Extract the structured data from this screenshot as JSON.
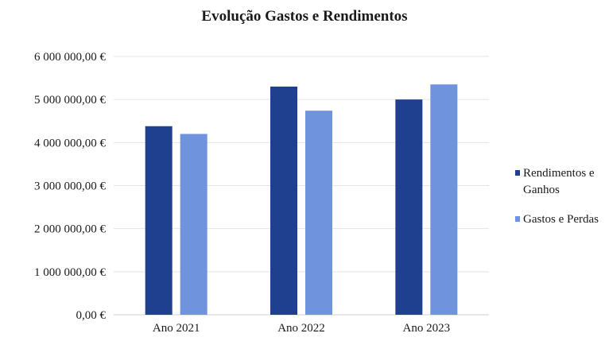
{
  "chart_data": {
    "type": "bar",
    "title": "Evolução Gastos e Rendimentos",
    "categories": [
      "Ano 2021",
      "Ano 2022",
      "Ano 2023"
    ],
    "series": [
      {
        "name": "Rendimentos e Ganhos",
        "values": [
          4380000,
          5300000,
          5000000
        ],
        "color": "#1f3f8f"
      },
      {
        "name": "Gastos e Perdas",
        "values": [
          4200000,
          4740000,
          5350000
        ],
        "color": "#6f93dc"
      }
    ],
    "ylim": [
      0,
      6000000
    ],
    "yticks": [
      0,
      1000000,
      2000000,
      3000000,
      4000000,
      5000000,
      6000000
    ],
    "ytick_labels": [
      "0,00 €",
      "1 000 000,00 €",
      "2 000 000,00 €",
      "3 000 000,00 €",
      "4 000 000,00 €",
      "5 000 000,00 €",
      "6 000 000,00 €"
    ],
    "xlabel": "",
    "ylabel": "",
    "grid": true,
    "legend_position": "right"
  }
}
